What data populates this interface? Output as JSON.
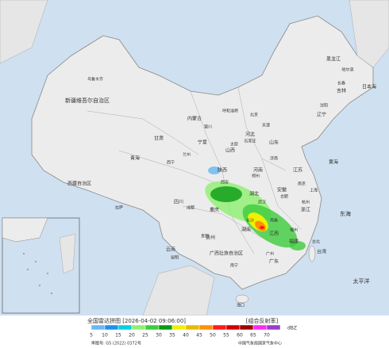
{
  "map": {
    "labels": [
      "新疆维吾尔自治区",
      "西藏自治区",
      "青海",
      "内蒙古",
      "黑龙江",
      "吉林",
      "辽宁",
      "河北",
      "山西",
      "山东",
      "河南",
      "陕西",
      "宁夏",
      "甘肃",
      "四川",
      "重庆",
      "湖北",
      "湖南",
      "江西",
      "安徽",
      "江苏",
      "浙江",
      "福建",
      "广东",
      "广西壮族自治区",
      "贵州",
      "云南",
      "乌鲁木齐",
      "拉萨",
      "西宁",
      "兰州",
      "银川",
      "呼和浩特",
      "哈尔滨",
      "长春",
      "沈阳",
      "北京",
      "天津",
      "石家庄",
      "太原",
      "济南",
      "郑州",
      "西安",
      "成都",
      "武汉",
      "长沙",
      "南昌",
      "合肥",
      "南京",
      "上海",
      "杭州",
      "福州",
      "台北",
      "广州",
      "南宁",
      "贵阳",
      "昆明",
      "海口",
      "台湾",
      "日本海",
      "黄海",
      "东海",
      "太平洋"
    ]
  },
  "legend": {
    "title": "全国雷达拼图 [2026-04-02 09:06:00]",
    "product": "[组合反射率]",
    "unit": "dBZ",
    "ticks": [
      5,
      10,
      15,
      20,
      25,
      30,
      35,
      40,
      45,
      50,
      55,
      60,
      65,
      70
    ],
    "colors": [
      "#66b8f2",
      "#1e8ff0",
      "#00d0e0",
      "#8ff070",
      "#3ccc3c",
      "#0a9a14",
      "#f0f000",
      "#e6bc00",
      "#ff9000",
      "#ff1a1a",
      "#d00000",
      "#a00000",
      "#ff2af0",
      "#9a3ccc"
    ]
  },
  "footer": {
    "approval": "审图号: GS (2022) 0372号",
    "source": "中国气象局国家气象中心"
  }
}
